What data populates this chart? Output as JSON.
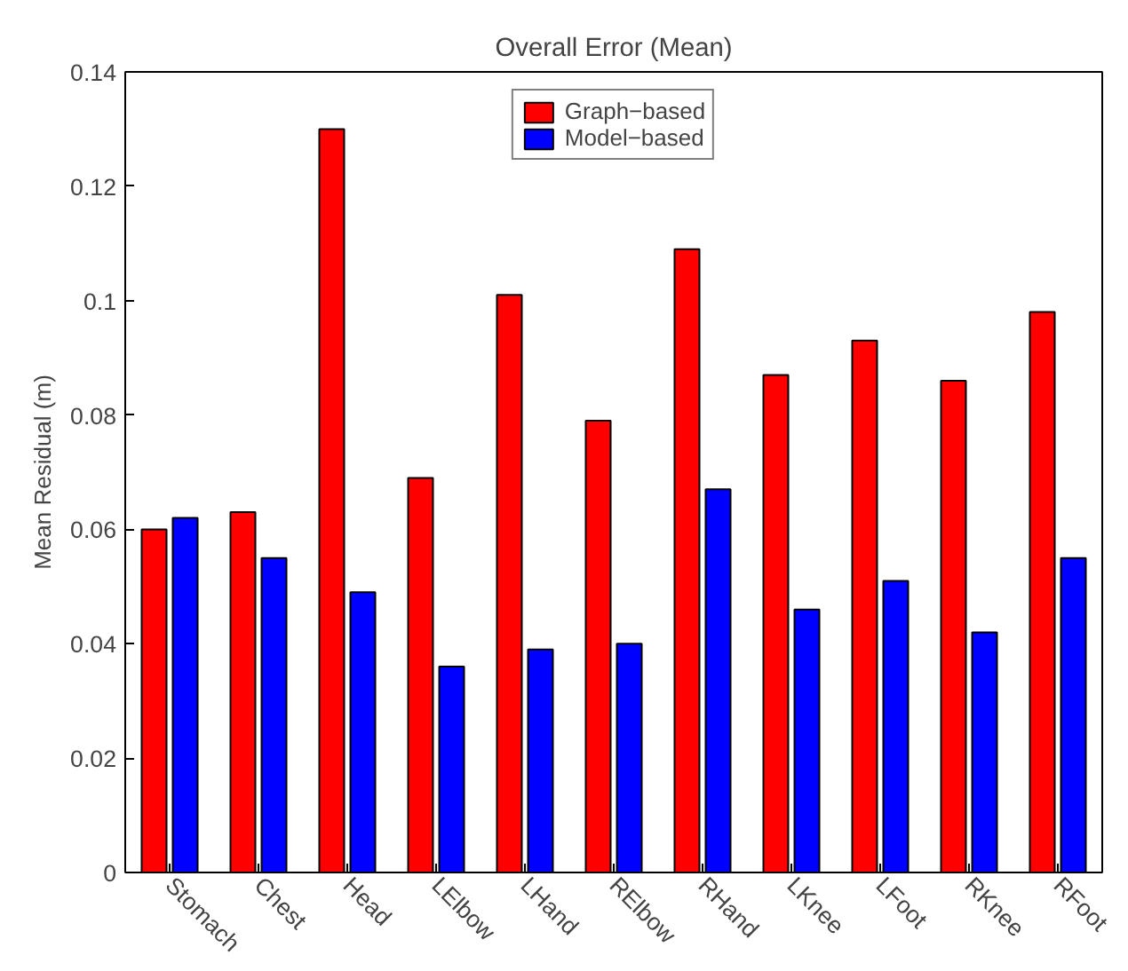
{
  "chart_data": {
    "type": "bar",
    "title": "Overall Error (Mean)",
    "ylabel": "Mean Residual (m)",
    "categories": [
      "Stomach",
      "Chest",
      "Head",
      "LElbow",
      "LHand",
      "RElbow",
      "RHand",
      "LKnee",
      "LFoot",
      "RKnee",
      "RFoot"
    ],
    "series": [
      {
        "name": "Graph−based",
        "color": "#ff0000",
        "values": [
          0.06,
          0.063,
          0.13,
          0.069,
          0.101,
          0.079,
          0.109,
          0.087,
          0.093,
          0.086,
          0.098
        ]
      },
      {
        "name": "Model−based",
        "color": "#0000ff",
        "values": [
          0.062,
          0.055,
          0.049,
          0.036,
          0.039,
          0.04,
          0.067,
          0.046,
          0.051,
          0.042,
          0.055
        ]
      }
    ],
    "ylim": [
      0,
      0.14
    ],
    "yticks": [
      0,
      0.02,
      0.04,
      0.06,
      0.08,
      0.1,
      0.12,
      0.14
    ],
    "grid": false,
    "legend": "top"
  }
}
